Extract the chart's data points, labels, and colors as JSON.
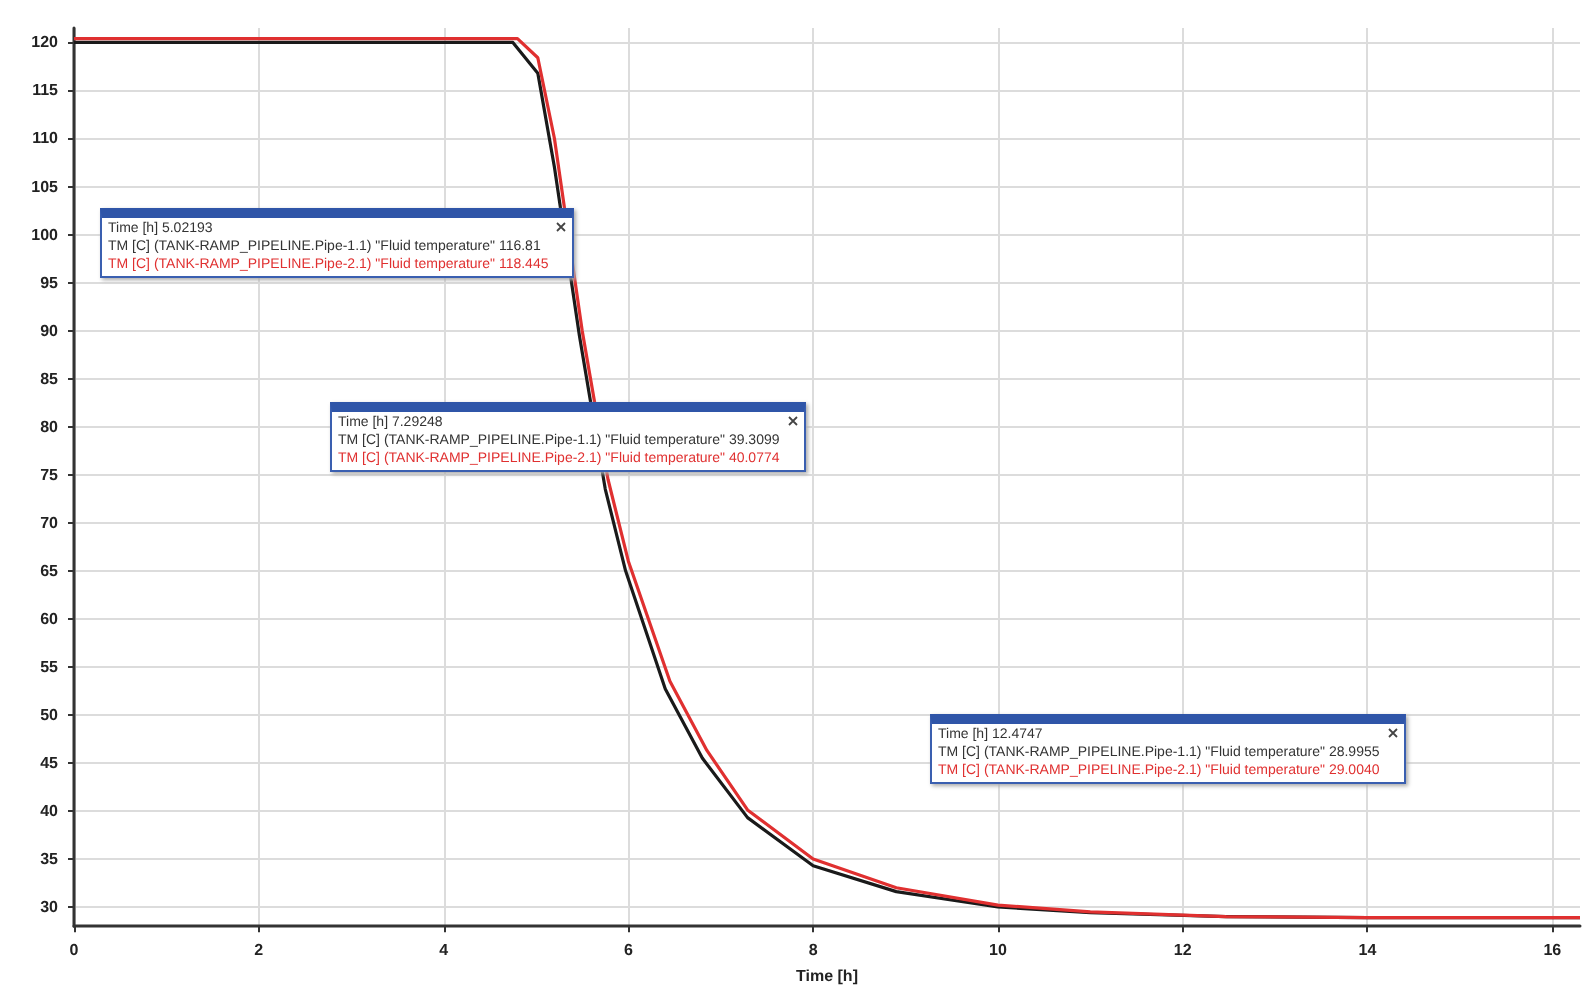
{
  "chart_data": {
    "type": "line",
    "xlabel": "Time [h]",
    "xlim": [
      0,
      16.3
    ],
    "xticks": [
      0,
      2,
      4,
      6,
      8,
      10,
      12,
      14,
      16
    ],
    "ylim": [
      28,
      121.5
    ],
    "yticks": [
      30,
      35,
      40,
      45,
      50,
      55,
      60,
      65,
      70,
      75,
      80,
      85,
      90,
      95,
      100,
      105,
      110,
      115,
      120
    ],
    "grid": true,
    "marker": "none",
    "line_style": "solid",
    "series": [
      {
        "color": "#1a1a1a",
        "x": [
          0,
          4.75,
          5.02,
          5.2,
          5.47,
          5.75,
          5.97,
          6.4,
          6.8,
          7.29,
          8,
          8.9,
          10,
          11,
          12.47,
          14,
          16.3
        ],
        "values": [
          120,
          120,
          116.8,
          107,
          89.5,
          73.5,
          65,
          52.7,
          45.5,
          39.3,
          34.3,
          31.6,
          30,
          29.4,
          29,
          28.9,
          28.9
        ]
      },
      {
        "color": "#e03030",
        "x": [
          0,
          4.8,
          5.02,
          5.2,
          5.5,
          5.78,
          6,
          6.45,
          6.85,
          7.29,
          8,
          8.9,
          10,
          11,
          12.47,
          14,
          16.3
        ],
        "values": [
          120.4,
          120.4,
          118.4,
          110,
          90,
          74.5,
          66,
          53.5,
          46.3,
          40.1,
          35,
          32,
          30.2,
          29.5,
          29,
          28.9,
          28.9
        ]
      }
    ],
    "annotations": [
      "Time [h] 5.02193\nTM [C] (TANK-RAMP_PIPELINE.Pipe-1.1) \"Fluid temperature\" 116.81\nTM [C] (TANK-RAMP_PIPELINE.Pipe-2.1) \"Fluid temperature\" 118.445",
      "Time [h] 7.29248\nTM [C] (TANK-RAMP_PIPELINE.Pipe-1.1) \"Fluid temperature\" 39.3099\nTM [C] (TANK-RAMP_PIPELINE.Pipe-2.1) \"Fluid temperature\" 40.0774",
      "Time [h] 12.4747\nTM [C] (TANK-RAMP_PIPELINE.Pipe-1.1) \"Fluid temperature\" 28.9955\nTM [C] (TANK-RAMP_PIPELINE.Pipe-2.1) \"Fluid temperature\" 29.0040"
    ]
  }
}
